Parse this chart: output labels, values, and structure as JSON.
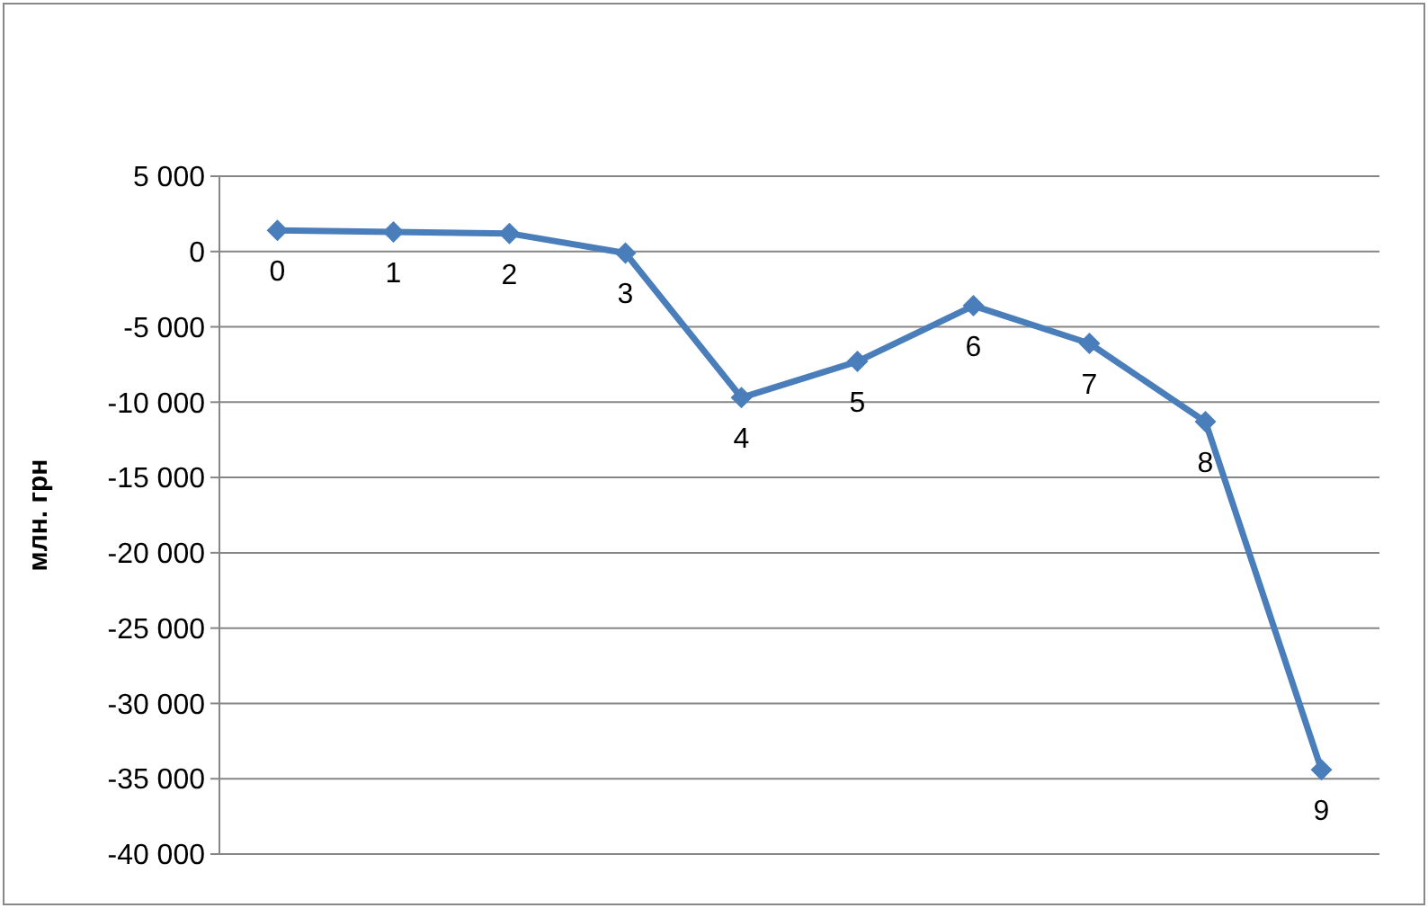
{
  "chart_data": {
    "type": "line",
    "ylabel": "млн. грн",
    "categories": [
      "0",
      "1",
      "2",
      "3",
      "4",
      "5",
      "6",
      "7",
      "8",
      "9"
    ],
    "series": [
      {
        "color": "#4a7ebb",
        "values": [
          1400,
          1300,
          1200,
          -100,
          -9700,
          -7300,
          -3600,
          -6100,
          -11300,
          -34400
        ]
      }
    ],
    "ylim": [
      -40000,
      5000
    ],
    "yticks": [
      {
        "value": -40000,
        "label": "-40 000"
      },
      {
        "value": -35000,
        "label": "-35 000"
      },
      {
        "value": -30000,
        "label": "-30 000"
      },
      {
        "value": -25000,
        "label": "-25 000"
      },
      {
        "value": -20000,
        "label": "-20 000"
      },
      {
        "value": -15000,
        "label": "-15 000"
      },
      {
        "value": -10000,
        "label": "-10 000"
      },
      {
        "value": -5000,
        "label": "-5 000"
      },
      {
        "value": 0,
        "label": "0"
      },
      {
        "value": 5000,
        "label": "5 000"
      }
    ],
    "grid": "y",
    "marker": "diamond",
    "line_style": "solid",
    "tick_labels": "y"
  }
}
